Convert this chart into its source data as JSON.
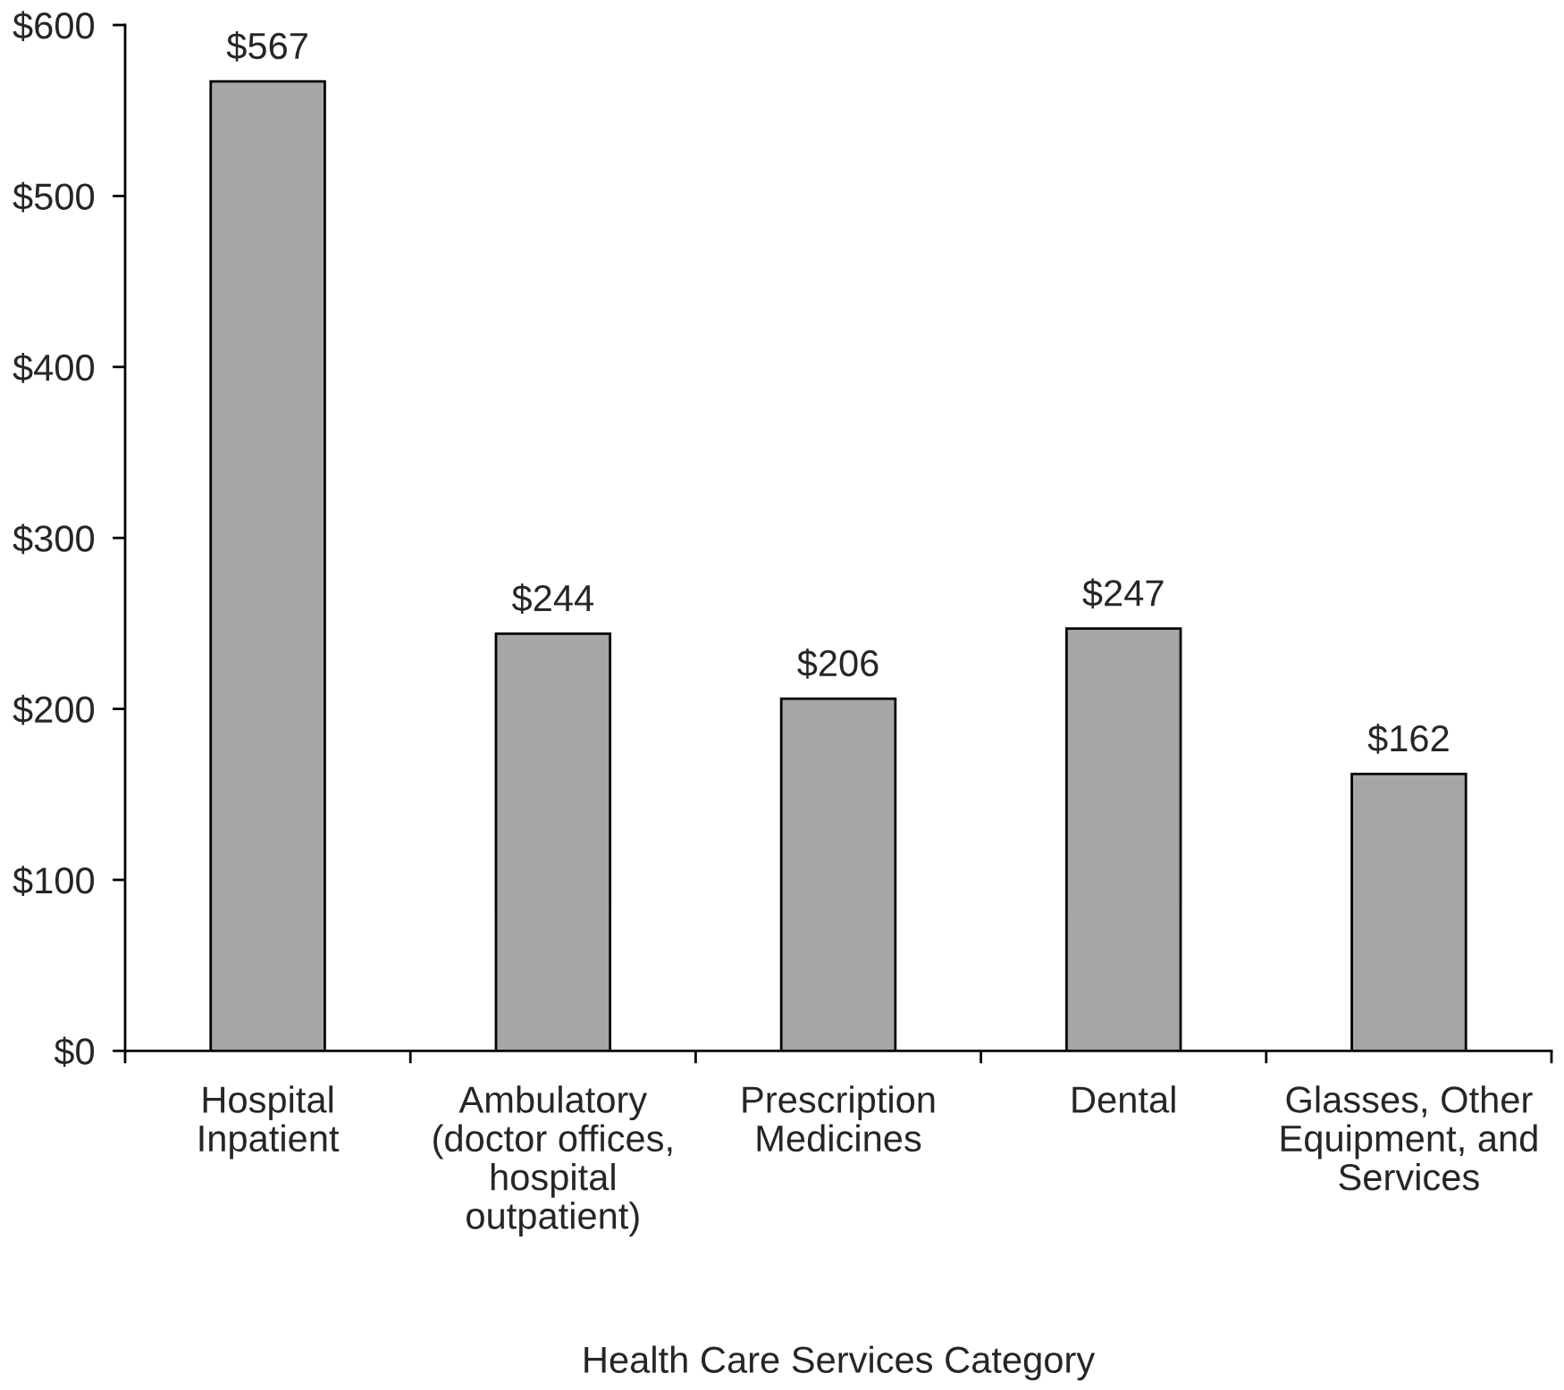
{
  "chart_data": {
    "type": "bar",
    "xlabel": "Health Care Services Category",
    "categories": [
      "Hospital\nInpatient",
      "Ambulatory\n(doctor offices,\nhospital\noutpatient)",
      "Prescription\nMedicines",
      "Dental",
      "Glasses, Other\nEquipment, and\nServices"
    ],
    "values": [
      567,
      244,
      206,
      247,
      162
    ],
    "value_labels": [
      "$567",
      "$244",
      "$206",
      "$247",
      "$162"
    ],
    "color": "#a6a6a6",
    "ylim": [
      0,
      600
    ],
    "yticks": [
      {
        "value": 0,
        "label": "$0"
      },
      {
        "value": 100,
        "label": "$100"
      },
      {
        "value": 200,
        "label": "$200"
      },
      {
        "value": 300,
        "label": "$300"
      },
      {
        "value": 400,
        "label": "$400"
      },
      {
        "value": 500,
        "label": "$500"
      },
      {
        "value": 600,
        "label": "$600"
      }
    ]
  }
}
